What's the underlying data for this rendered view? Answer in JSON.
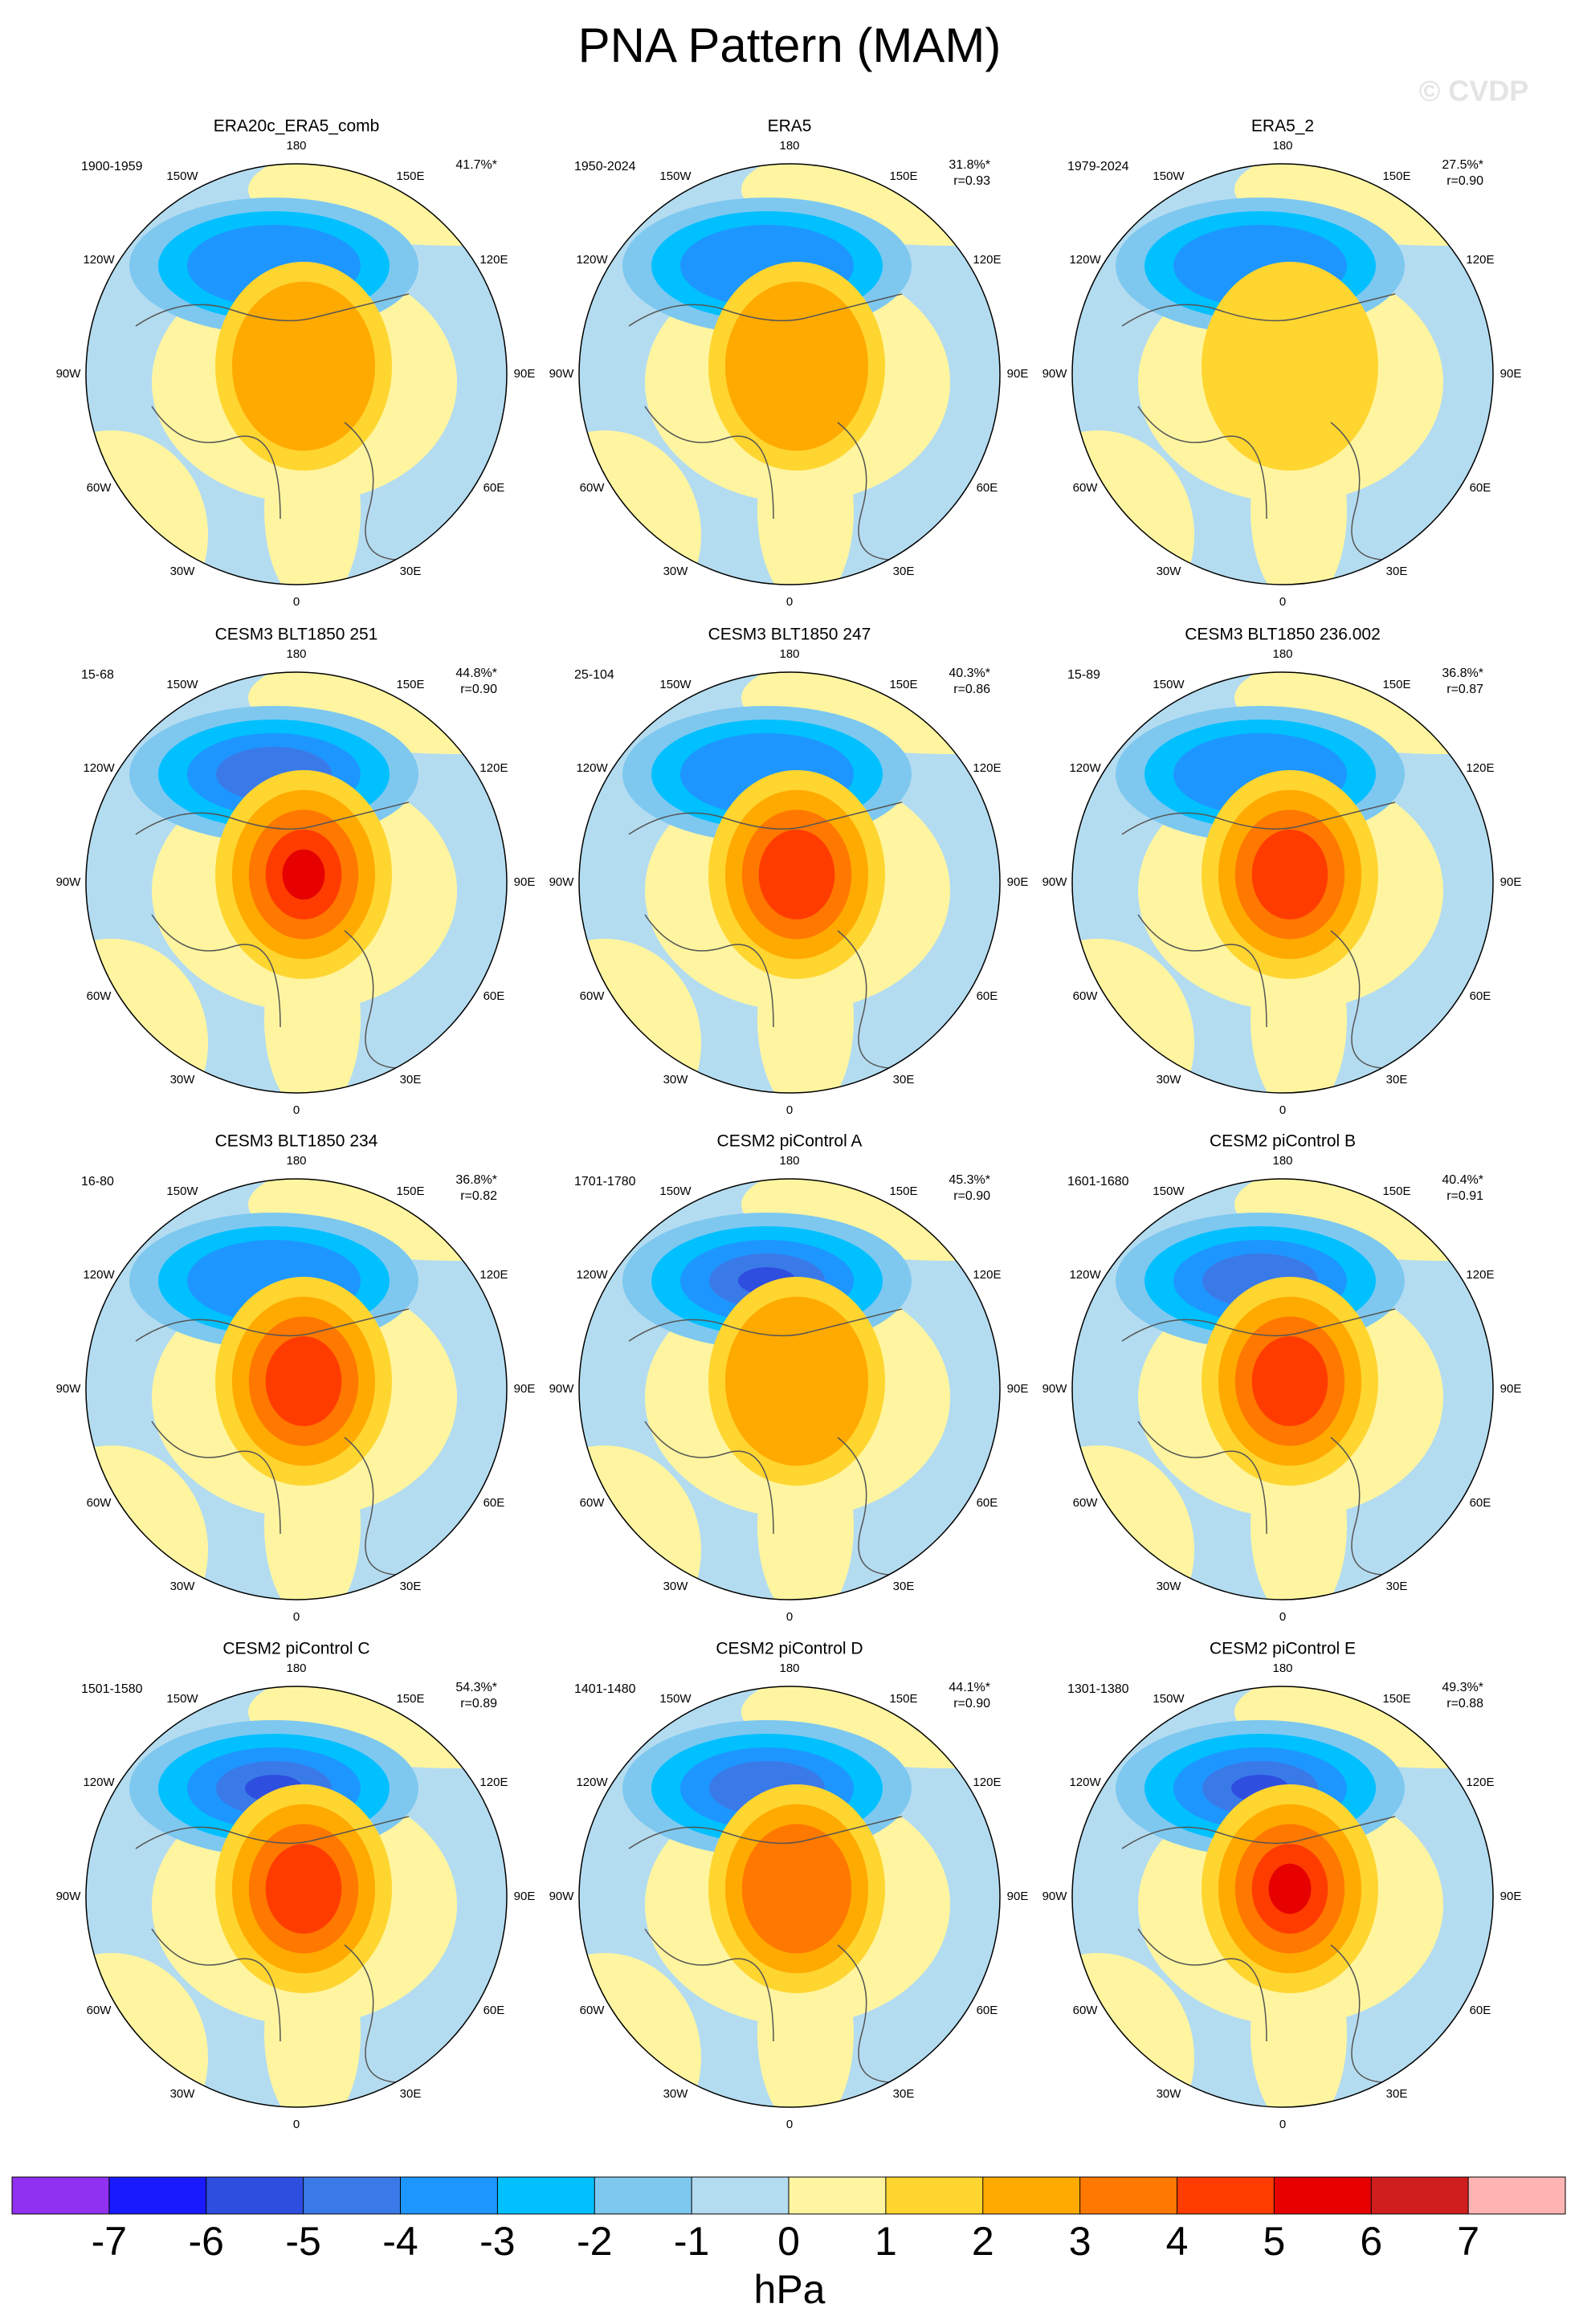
{
  "title": "PNA Pattern (MAM)",
  "watermark": "© CVDP",
  "longitude_labels": [
    "180",
    "150E",
    "120E",
    "90E",
    "60E",
    "30E",
    "0",
    "30W",
    "60W",
    "90W",
    "120W",
    "150W"
  ],
  "panels": [
    {
      "title": "ERA20c_ERA5_comb",
      "period": "1900-1959",
      "percent": "41.7%*"
    },
    {
      "title": "ERA5",
      "period": "1950-2024",
      "percent": "31.8%*",
      "r": "r=0.93"
    },
    {
      "title": "ERA5_2",
      "period": "1979-2024",
      "percent": "27.5%*",
      "r": "r=0.90"
    },
    {
      "title": "CESM3 BLT1850 251",
      "period": "15-68",
      "percent": "44.8%*",
      "r": "r=0.90"
    },
    {
      "title": "CESM3 BLT1850 247",
      "period": "25-104",
      "percent": "40.3%*",
      "r": "r=0.86"
    },
    {
      "title": "CESM3 BLT1850 236.002",
      "period": "15-89",
      "percent": "36.8%*",
      "r": "r=0.87"
    },
    {
      "title": "CESM3 BLT1850 234",
      "period": "16-80",
      "percent": "36.8%*",
      "r": "r=0.82"
    },
    {
      "title": "CESM2 piControl A",
      "period": "1701-1780",
      "percent": "45.3%*",
      "r": "r=0.90"
    },
    {
      "title": "CESM2 piControl B",
      "period": "1601-1680",
      "percent": "40.4%*",
      "r": "r=0.91"
    },
    {
      "title": "CESM2 piControl C",
      "period": "1501-1580",
      "percent": "54.3%*",
      "r": "r=0.89"
    },
    {
      "title": "CESM2 piControl D",
      "period": "1401-1480",
      "percent": "44.1%*",
      "r": "r=0.90"
    },
    {
      "title": "CESM2 piControl E",
      "period": "1301-1380",
      "percent": "49.3%*",
      "r": "r=0.88"
    }
  ],
  "colorbar": {
    "ticks": [
      -7,
      -6,
      -5,
      -4,
      -3,
      -2,
      -1,
      0,
      1,
      2,
      3,
      4,
      5,
      6,
      7
    ],
    "colors": [
      "#9030f0",
      "#1a1aff",
      "#2e4ee0",
      "#3a7ae8",
      "#1e96ff",
      "#00c0ff",
      "#7ec8f0",
      "#b4dcf0",
      "#fff5a0",
      "#ffd530",
      "#ffaa00",
      "#ff7800",
      "#ff3c00",
      "#e60000",
      "#d01e1e",
      "#ffb4b4"
    ],
    "label": "hPa"
  }
}
